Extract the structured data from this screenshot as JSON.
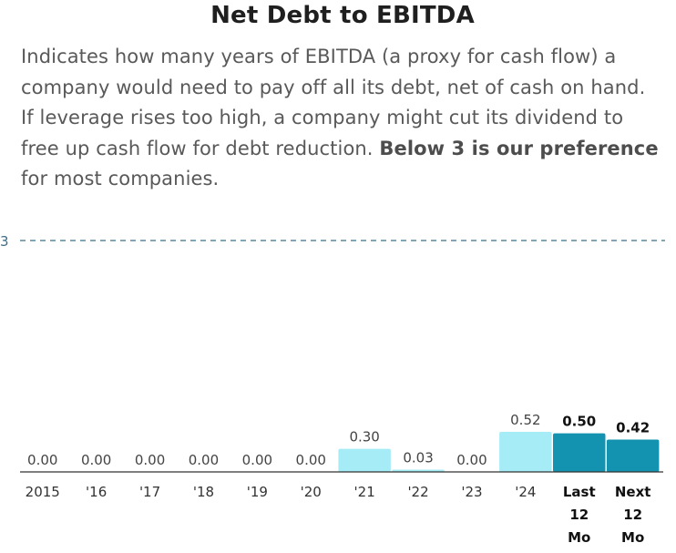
{
  "title": "Net Debt to EBITDA",
  "description": {
    "text": "Indicates how many years of EBITDA (a proxy for cash flow) a company would need to pay off all its debt, net of cash on hand. If leverage rises too high, a company might cut its dividend to free up cash flow for debt reduction.",
    "emphasis": "Below 3 is our preference",
    "tail": "for most companies."
  },
  "colors": {
    "historical": "#a6ecf7",
    "forecast": "#1393b0",
    "threshold": "#3e6f88",
    "axis": "#333333"
  },
  "chart_data": {
    "type": "bar",
    "title": "Net Debt to EBITDA",
    "xlabel": "",
    "ylabel": "",
    "ylim": [
      0,
      3
    ],
    "grid": false,
    "reference_line": {
      "value": 3,
      "label": "3",
      "style": "dashed"
    },
    "categories": [
      "2015",
      "'16",
      "'17",
      "'18",
      "'19",
      "'20",
      "'21",
      "'22",
      "'23",
      "'24",
      "Last 12 Mo",
      "Next 12 Mo"
    ],
    "values": [
      0.0,
      0.0,
      0.0,
      0.0,
      0.0,
      0.0,
      0.3,
      0.03,
      0.0,
      0.52,
      0.5,
      0.42
    ],
    "labels": [
      "0.00",
      "0.00",
      "0.00",
      "0.00",
      "0.00",
      "0.00",
      "0.30",
      "0.03",
      "0.00",
      "0.52",
      "0.50",
      "0.42"
    ],
    "highlighted": [
      false,
      false,
      false,
      false,
      false,
      false,
      false,
      false,
      false,
      false,
      true,
      true
    ]
  }
}
